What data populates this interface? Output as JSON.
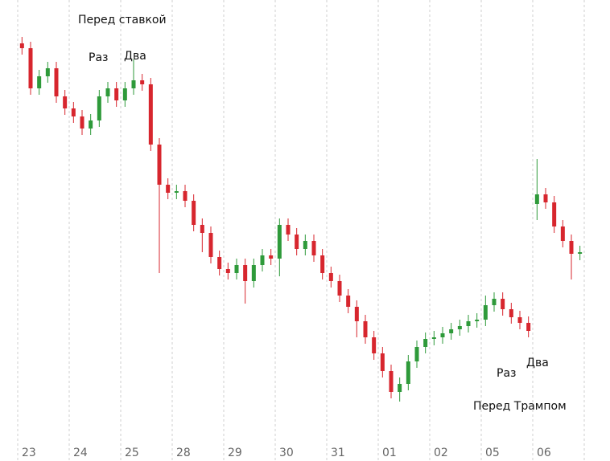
{
  "chart_data": {
    "type": "candlestick",
    "categories": [
      "23",
      "24",
      "25",
      "28",
      "29",
      "30",
      "31",
      "01",
      "02",
      "05",
      "06"
    ],
    "candles_per_category": 6,
    "up_color": "#2e9a3a",
    "down_color": "#d7262e",
    "ylim": [
      60,
      560
    ],
    "open": [
      520,
      514,
      464,
      479,
      489,
      454,
      439,
      429,
      414,
      424,
      454,
      464,
      449,
      464,
      474,
      469,
      394,
      344,
      334,
      336,
      324,
      294,
      284,
      254,
      239,
      234,
      244,
      224,
      244,
      256,
      252,
      294,
      282,
      264,
      274,
      256,
      234,
      224,
      206,
      192,
      174,
      154,
      134,
      112,
      86,
      96,
      124,
      142,
      152,
      154,
      159,
      164,
      168,
      174,
      176,
      194,
      202,
      189,
      179,
      172,
      320,
      332,
      322,
      292,
      274,
      258
    ],
    "close": [
      514,
      464,
      479,
      489,
      454,
      439,
      429,
      414,
      424,
      454,
      464,
      449,
      464,
      474,
      469,
      394,
      344,
      334,
      336,
      324,
      294,
      284,
      254,
      239,
      234,
      244,
      224,
      244,
      256,
      252,
      294,
      282,
      264,
      274,
      256,
      234,
      224,
      206,
      192,
      174,
      154,
      134,
      112,
      86,
      96,
      124,
      142,
      152,
      154,
      159,
      164,
      168,
      174,
      176,
      194,
      202,
      189,
      179,
      172,
      162,
      332,
      322,
      292,
      274,
      258,
      260
    ],
    "high": [
      528,
      522,
      487,
      497,
      497,
      462,
      447,
      437,
      432,
      462,
      472,
      472,
      472,
      500,
      482,
      477,
      402,
      352,
      344,
      344,
      332,
      302,
      292,
      262,
      247,
      252,
      252,
      252,
      264,
      264,
      302,
      302,
      290,
      282,
      282,
      264,
      242,
      232,
      214,
      200,
      182,
      162,
      142,
      120,
      104,
      132,
      150,
      160,
      162,
      167,
      172,
      176,
      182,
      184,
      206,
      210,
      210,
      197,
      187,
      180,
      376,
      340,
      330,
      300,
      282,
      268
    ],
    "low": [
      506,
      456,
      456,
      471,
      446,
      431,
      421,
      406,
      406,
      416,
      446,
      441,
      441,
      456,
      461,
      386,
      234,
      326,
      326,
      316,
      286,
      260,
      246,
      231,
      226,
      226,
      196,
      216,
      236,
      244,
      230,
      274,
      256,
      256,
      248,
      226,
      216,
      198,
      184,
      154,
      146,
      126,
      104,
      78,
      74,
      88,
      116,
      134,
      144,
      146,
      151,
      156,
      160,
      166,
      168,
      186,
      181,
      171,
      164,
      154,
      300,
      314,
      284,
      266,
      226,
      250
    ],
    "annotations": [
      "Перед ставкой",
      "Раз",
      "Два",
      "Раз",
      "Два",
      "Перед Трампом"
    ]
  }
}
